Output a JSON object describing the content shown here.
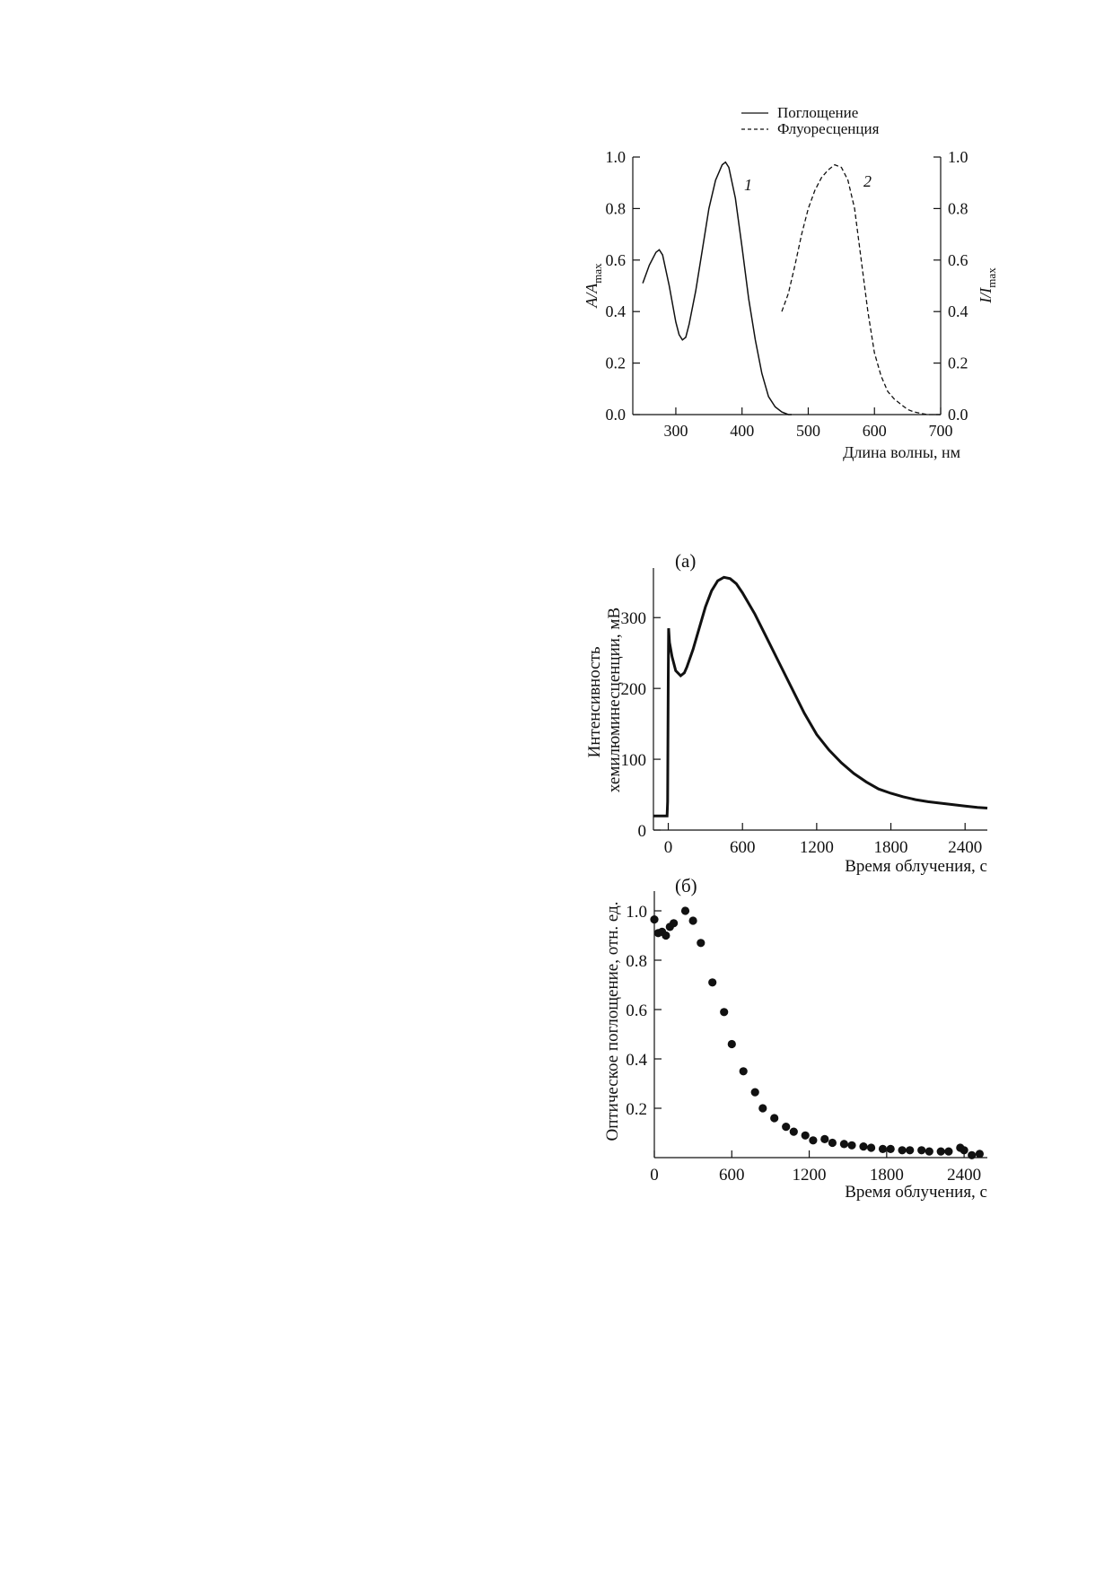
{
  "charts": {
    "spectra": {
      "legend": {
        "absorption": "Поглощение",
        "fluorescence": "Флуоресценция"
      },
      "ylabel_left": {
        "main": "A/A",
        "sub": "max"
      },
      "ylabel_right": {
        "main": "I/I",
        "sub": "max"
      },
      "xlabel": "Длина волны, нм",
      "curve_labels": {
        "absorption": "1",
        "fluorescence": "2"
      },
      "x_ticks": [
        "300",
        "400",
        "500",
        "600",
        "700"
      ],
      "y_ticks": [
        "0.0",
        "0.2",
        "0.4",
        "0.6",
        "0.8",
        "1.0"
      ]
    },
    "chemiluminescence": {
      "panel_label": "(а)",
      "ylabel_line1": "Интенсивность",
      "ylabel_line2": "хемилюминесценции, мВ",
      "xlabel": "Время облучения, с",
      "x_ticks": [
        "0",
        "600",
        "1200",
        "1800",
        "2400"
      ],
      "y_ticks": [
        "0",
        "100",
        "200",
        "300"
      ]
    },
    "absorbance": {
      "panel_label": "(б)",
      "ylabel": "Оптическое поглощение, отн. ед.",
      "xlabel": "Время облучения, с",
      "x_ticks": [
        "0",
        "600",
        "1200",
        "1800",
        "2400"
      ],
      "y_ticks": [
        "0.2",
        "0.4",
        "0.6",
        "0.8",
        "1.0"
      ]
    }
  },
  "chart_data": [
    {
      "type": "line",
      "xlabel": "Длина волны, нм",
      "ylabel": "A/Amax",
      "ylabel_right": "I/Imax",
      "xlim": [
        235,
        700
      ],
      "ylim": [
        0,
        1.0
      ],
      "legend_position": "top",
      "series": [
        {
          "name": "Поглощение",
          "label": "1",
          "style": "solid",
          "x": [
            250,
            260,
            270,
            275,
            280,
            290,
            300,
            305,
            310,
            315,
            320,
            330,
            340,
            350,
            360,
            370,
            375,
            380,
            390,
            400,
            410,
            420,
            430,
            440,
            450,
            460,
            470,
            475
          ],
          "y": [
            0.51,
            0.58,
            0.63,
            0.64,
            0.62,
            0.5,
            0.36,
            0.31,
            0.29,
            0.3,
            0.35,
            0.48,
            0.64,
            0.8,
            0.91,
            0.97,
            0.98,
            0.96,
            0.84,
            0.65,
            0.45,
            0.29,
            0.16,
            0.07,
            0.03,
            0.01,
            0.0,
            0.0
          ]
        },
        {
          "name": "Флуоресценция",
          "label": "2",
          "style": "dashed",
          "x": [
            460,
            470,
            480,
            490,
            500,
            510,
            520,
            530,
            540,
            550,
            560,
            570,
            580,
            590,
            600,
            610,
            620,
            630,
            640,
            650,
            660,
            670,
            680,
            690,
            700
          ],
          "y": [
            0.4,
            0.47,
            0.58,
            0.7,
            0.8,
            0.87,
            0.92,
            0.95,
            0.97,
            0.96,
            0.91,
            0.8,
            0.6,
            0.4,
            0.24,
            0.15,
            0.09,
            0.06,
            0.04,
            0.02,
            0.01,
            0.005,
            0.0,
            0.0,
            0.0
          ]
        }
      ]
    },
    {
      "type": "line",
      "title": "(а)",
      "xlabel": "Время облучения, с",
      "ylabel": "Интенсивность хемилюминесценции, мВ",
      "xlim": [
        -120,
        2580
      ],
      "ylim": [
        0,
        370
      ],
      "series": [
        {
          "x": [
            -120,
            -10,
            -5,
            0,
            3,
            10,
            30,
            60,
            100,
            130,
            150,
            200,
            250,
            300,
            350,
            400,
            450,
            500,
            550,
            600,
            700,
            800,
            900,
            1000,
            1100,
            1200,
            1300,
            1400,
            1500,
            1600,
            1700,
            1800,
            1900,
            2000,
            2100,
            2200,
            2300,
            2400,
            2500,
            2580
          ],
          "y": [
            20,
            20,
            40,
            215,
            285,
            265,
            245,
            225,
            218,
            222,
            230,
            255,
            285,
            315,
            338,
            352,
            357,
            355,
            348,
            335,
            305,
            270,
            235,
            200,
            165,
            135,
            113,
            95,
            80,
            68,
            58,
            52,
            47,
            43,
            40,
            38,
            36,
            34,
            32,
            31
          ]
        }
      ]
    },
    {
      "type": "scatter",
      "title": "(б)",
      "xlabel": "Время облучения, с",
      "ylabel": "Оптическое поглощение, отн. ед.",
      "xlim": [
        0,
        2580
      ],
      "ylim": [
        0,
        1.08
      ],
      "series": [
        {
          "x": [
            0,
            30,
            60,
            90,
            120,
            150,
            240,
            300,
            360,
            450,
            540,
            600,
            690,
            780,
            840,
            930,
            1020,
            1080,
            1170,
            1230,
            1320,
            1380,
            1470,
            1530,
            1620,
            1680,
            1770,
            1830,
            1920,
            1980,
            2070,
            2130,
            2220,
            2280,
            2370,
            2400,
            2460,
            2520
          ],
          "y": [
            0.965,
            0.91,
            0.915,
            0.9,
            0.935,
            0.95,
            1.0,
            0.96,
            0.87,
            0.71,
            0.59,
            0.46,
            0.35,
            0.265,
            0.2,
            0.16,
            0.125,
            0.105,
            0.09,
            0.07,
            0.075,
            0.06,
            0.055,
            0.05,
            0.045,
            0.04,
            0.035,
            0.035,
            0.03,
            0.03,
            0.03,
            0.025,
            0.025,
            0.025,
            0.04,
            0.03,
            0.01,
            0.015
          ]
        }
      ]
    }
  ]
}
